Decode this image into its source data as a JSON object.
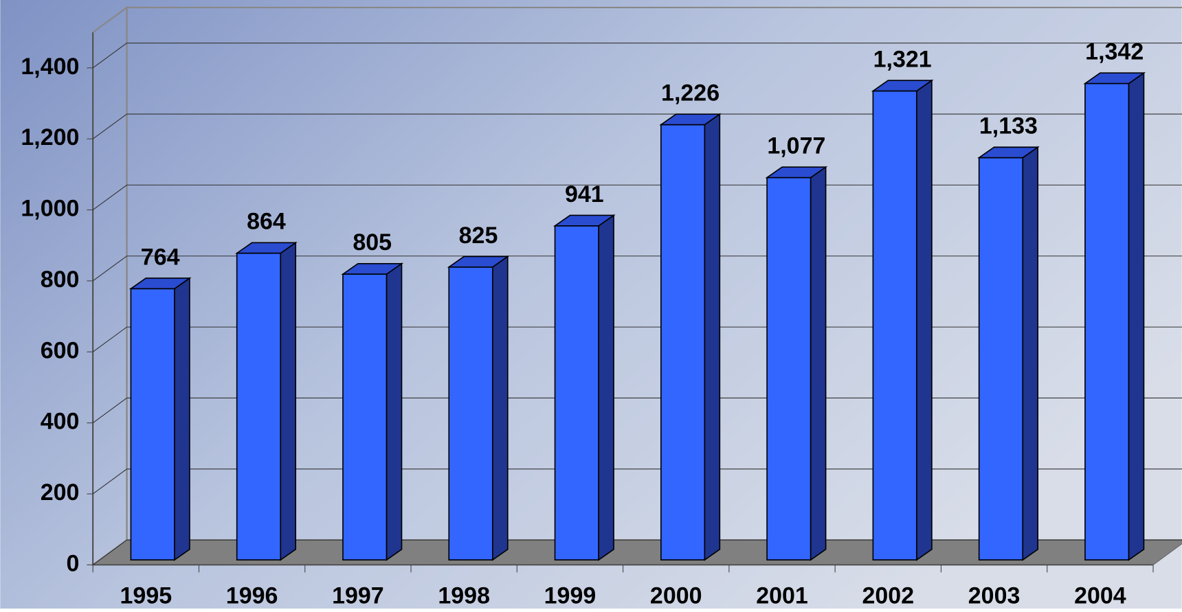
{
  "chart_data": {
    "type": "bar3d",
    "categories": [
      "1995",
      "1996",
      "1997",
      "1998",
      "1999",
      "2000",
      "2001",
      "2002",
      "2003",
      "2004"
    ],
    "values": [
      764,
      864,
      805,
      825,
      941,
      1226,
      1077,
      1321,
      1133,
      1342
    ],
    "value_labels": [
      "764",
      "864",
      "805",
      "825",
      "941",
      "1,226",
      "1,077",
      "1,321",
      "1,133",
      "1,342"
    ],
    "color": "#3366ff",
    "ylim": [
      0,
      1500
    ],
    "yticks": [
      0,
      200,
      400,
      600,
      800,
      {
        "value": 1000,
        "label": "1,000"
      },
      {
        "value": 1200,
        "label": "1,200"
      },
      {
        "value": 1400,
        "label": "1,400"
      }
    ],
    "grid": true
  }
}
